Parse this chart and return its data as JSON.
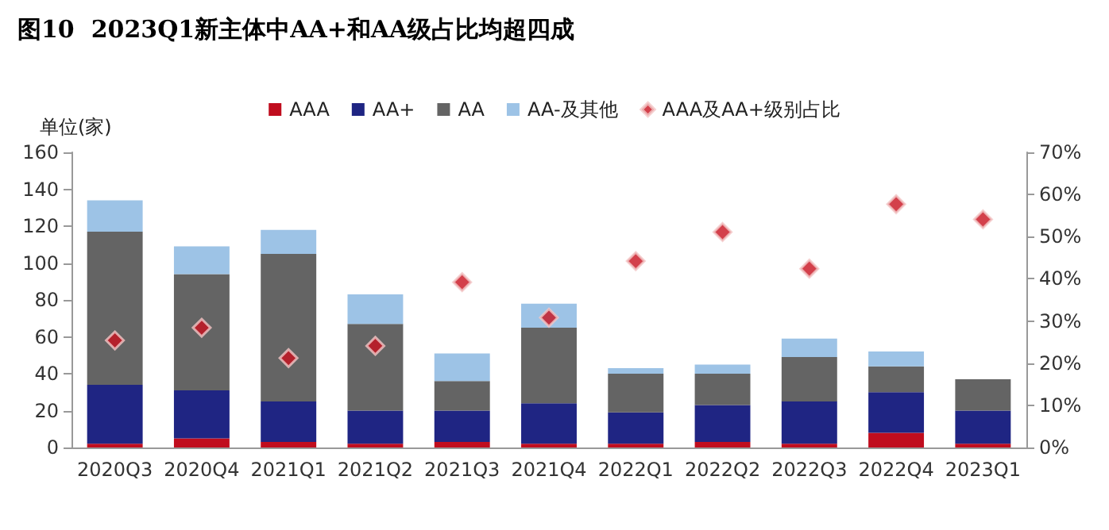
{
  "chart_data": {
    "type": "bar",
    "title": "图10  2023Q1新主体中AA+和AA级占比均超四成",
    "ylabel": "单位(家)",
    "categories": [
      "2020Q3",
      "2020Q4",
      "2021Q1",
      "2021Q2",
      "2021Q3",
      "2021Q4",
      "2022Q1",
      "2022Q2",
      "2022Q3",
      "2022Q4",
      "2023Q1"
    ],
    "stacked": true,
    "legend": "top",
    "grid": false,
    "series": [
      {
        "name": "AAA",
        "color": "#c00d1e",
        "values": [
          2,
          5,
          3,
          2,
          3,
          2,
          2,
          3,
          2,
          8,
          2
        ]
      },
      {
        "name": "AA+",
        "color": "#1f2583",
        "values": [
          32,
          26,
          22,
          18,
          17,
          22,
          17,
          20,
          23,
          22,
          18
        ]
      },
      {
        "name": "AA",
        "color": "#646464",
        "values": [
          83,
          63,
          80,
          47,
          16,
          41,
          21,
          17,
          24,
          14,
          17
        ]
      },
      {
        "name": "AA-及其他",
        "color": "#9dc3e6",
        "values": [
          17,
          15,
          13,
          16,
          15,
          13,
          3,
          5,
          10,
          8,
          0
        ]
      },
      {
        "name": "AAA及AA+级别占比",
        "type": "scatter",
        "axis": "y2",
        "marker": "diamond",
        "color": "#c8101e",
        "values": [
          25.4,
          28.4,
          21.2,
          24.1,
          39.2,
          30.8,
          44.2,
          51.1,
          42.4,
          57.7,
          54.1
        ]
      }
    ],
    "ylim": [
      0,
      160
    ],
    "yticks": [
      0,
      20,
      40,
      60,
      80,
      100,
      120,
      140,
      160
    ],
    "y2lim": [
      0,
      70
    ],
    "y2ticks": [
      {
        "value": 0,
        "label": "0%"
      },
      {
        "value": 10,
        "label": "10%"
      },
      {
        "value": 20,
        "label": "20%"
      },
      {
        "value": 30,
        "label": "30%"
      },
      {
        "value": 40,
        "label": "40%"
      },
      {
        "value": 50,
        "label": "50%"
      },
      {
        "value": 60,
        "label": "60%"
      },
      {
        "value": 70,
        "label": "70%"
      }
    ]
  }
}
